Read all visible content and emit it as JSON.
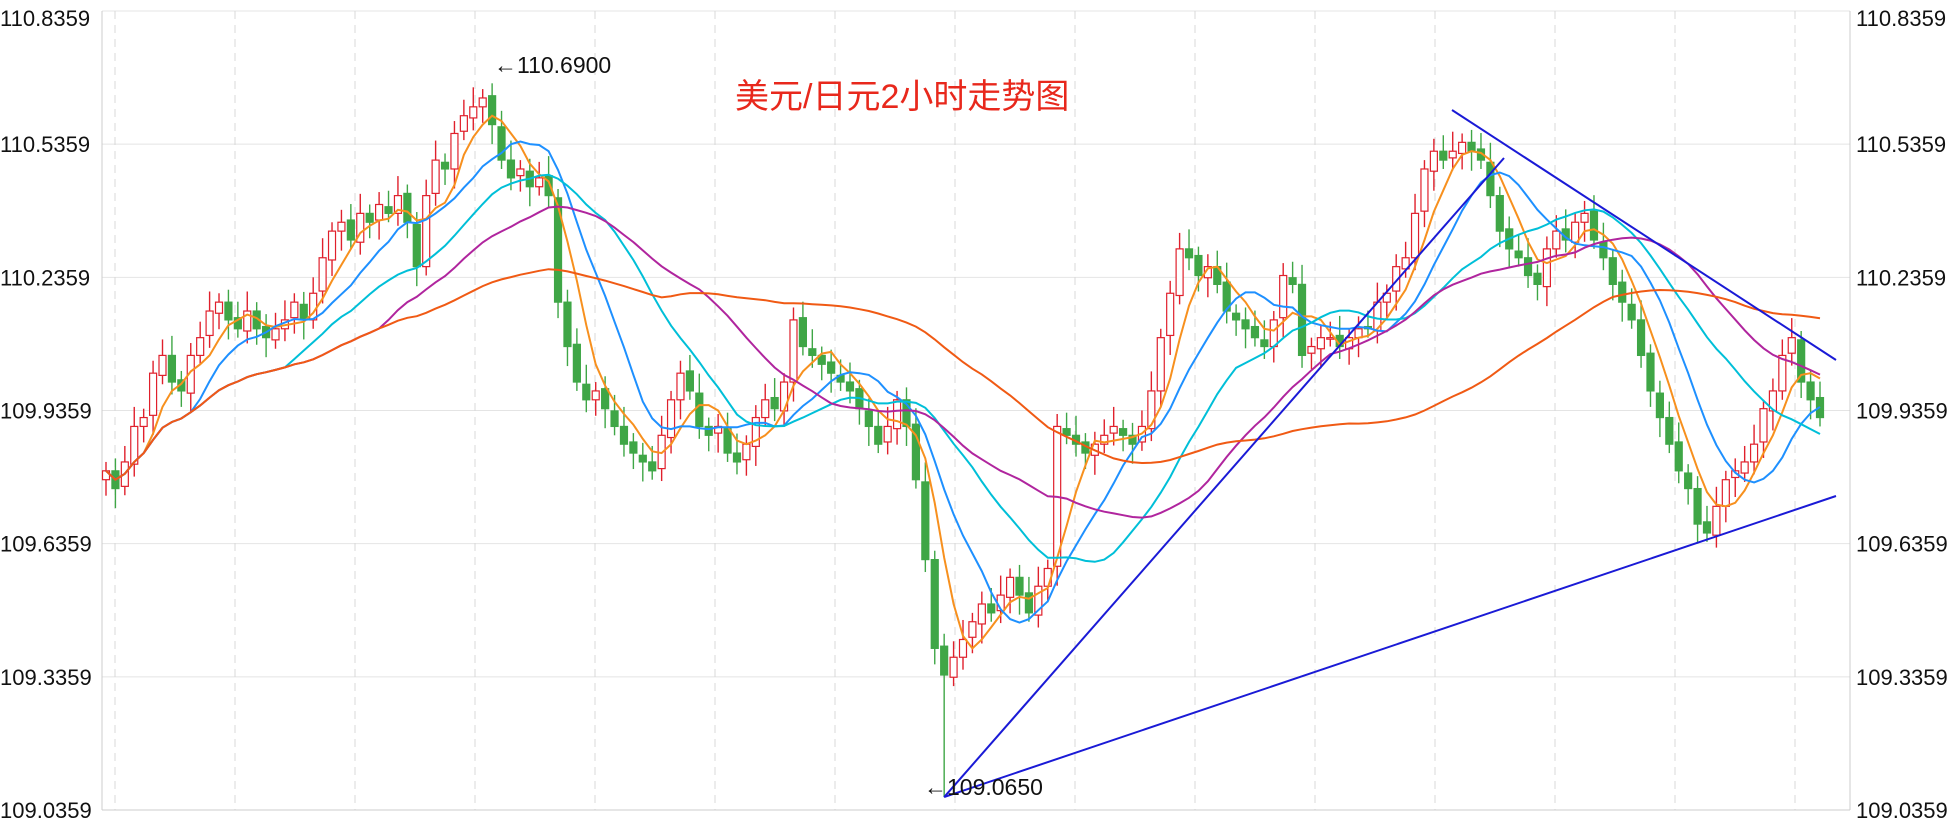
{
  "chart_data": {
    "type": "candlestick",
    "title": "美元/日元2小时走势图",
    "y_axis": {
      "ticks": [
        "110.8359",
        "110.5359",
        "110.2359",
        "109.9359",
        "109.6359",
        "109.3359",
        "109.0359"
      ],
      "ylim": [
        109.0359,
        110.8359
      ],
      "side": "both"
    },
    "grid": true,
    "colors": {
      "up": "#e0202c",
      "down": "#3fa646",
      "ma5": "#f7901e",
      "ma10": "#1e90ff",
      "ma20": "#00bfd8",
      "ma30": "#b0259e",
      "ma60": "#f05a14",
      "trendline": "#1a1ad6"
    },
    "annotations": [
      {
        "text": "←110.6900",
        "price": 110.69
      },
      {
        "text": "←109.0650",
        "price": 109.065
      }
    ],
    "candles_close": [
      109.8,
      109.76,
      109.82,
      109.9,
      109.92,
      110.02,
      110.06,
      110.0,
      109.98,
      110.06,
      110.1,
      110.16,
      110.18,
      110.14,
      110.12,
      110.16,
      110.12,
      110.1,
      110.12,
      110.14,
      110.18,
      110.14,
      110.2,
      110.28,
      110.34,
      110.36,
      110.32,
      110.38,
      110.36,
      110.4,
      110.38,
      110.42,
      110.36,
      110.26,
      110.42,
      110.5,
      110.48,
      110.56,
      110.6,
      110.62,
      110.64,
      110.58,
      110.5,
      110.46,
      110.48,
      110.44,
      110.46,
      110.42,
      110.18,
      110.08,
      110.0,
      109.96,
      109.98,
      109.94,
      109.9,
      109.86,
      109.84,
      109.82,
      109.8,
      109.88,
      109.96,
      110.02,
      109.98,
      109.9,
      109.88,
      109.9,
      109.84,
      109.82,
      109.86,
      109.92,
      109.96,
      109.94,
      110.0,
      110.14,
      110.08,
      110.06,
      110.04,
      110.02,
      110.0,
      109.98,
      109.94,
      109.9,
      109.86,
      109.9,
      109.96,
      109.9,
      109.78,
      109.6,
      109.4,
      109.34,
      109.38,
      109.42,
      109.46,
      109.5,
      109.48,
      109.52,
      109.56,
      109.52,
      109.48,
      109.54,
      109.58,
      109.9,
      109.88,
      109.86,
      109.84,
      109.86,
      109.88,
      109.9,
      109.88,
      109.86,
      109.9,
      109.98,
      110.1,
      110.2,
      110.3,
      110.28,
      110.24,
      110.26,
      110.22,
      110.16,
      110.14,
      110.12,
      110.1,
      110.08,
      110.14,
      110.24,
      110.22,
      110.06,
      110.08,
      110.1,
      110.1,
      110.08,
      110.1,
      110.12,
      110.12,
      110.18,
      110.2,
      110.26,
      110.28,
      110.38,
      110.48,
      110.52,
      110.5,
      110.52,
      110.54,
      110.52,
      110.5,
      110.42,
      110.34,
      110.3,
      110.28,
      110.24,
      110.22,
      110.3,
      110.34,
      110.32,
      110.36,
      110.38,
      110.32,
      110.28,
      110.22,
      110.18,
      110.14,
      110.06,
      109.98,
      109.92,
      109.86,
      109.8,
      109.76,
      109.68,
      109.66,
      109.72,
      109.78,
      109.8,
      109.82,
      109.86,
      109.94,
      109.98,
      110.06,
      110.1,
      110.0,
      109.96,
      109.92
    ],
    "moving_averages": [
      "MA5",
      "MA10",
      "MA20",
      "MA30",
      "MA60"
    ]
  }
}
